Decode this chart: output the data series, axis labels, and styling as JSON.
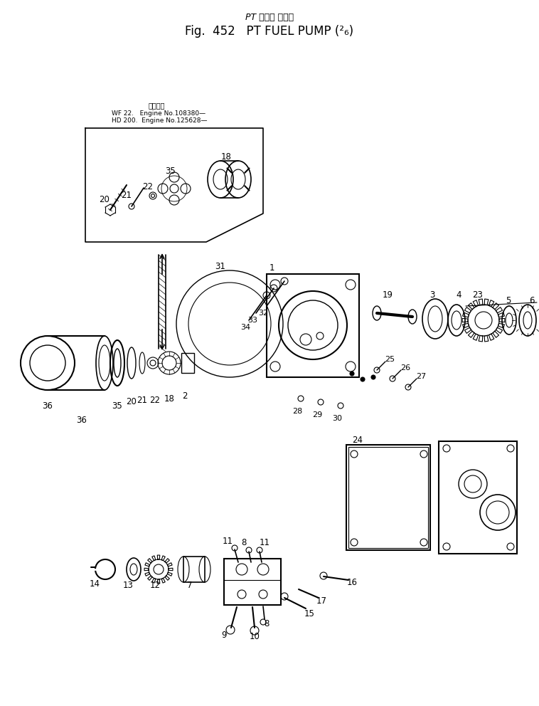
{
  "title_jp": "PT フェル ポンプ",
  "title_en": "Fig.  452   PT FUEL PUMP (²₆)",
  "bg_color": "#ffffff",
  "line_color": "#000000",
  "fig_width": 7.58,
  "fig_height": 9.92,
  "dpi": 100,
  "note_jp": "適用号経",
  "note_line1": "WF 22.   Engine No.108380—",
  "note_line2": "HD 200.  Engine No.125628—"
}
